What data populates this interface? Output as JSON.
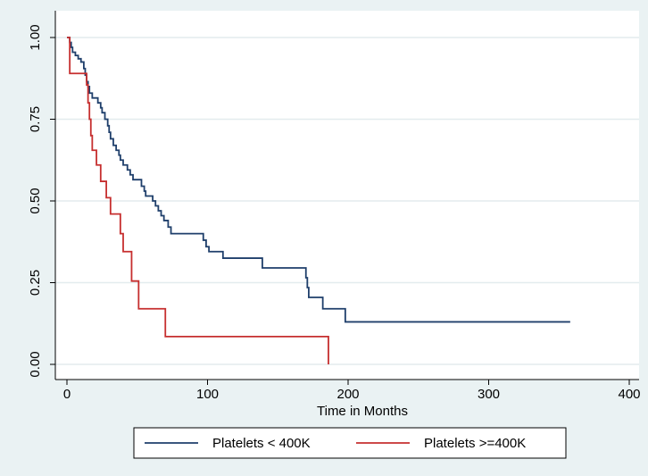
{
  "chart_data": {
    "type": "line",
    "title": "",
    "xlabel": "Time in Months",
    "ylabel": "",
    "xlim": [
      0,
      400
    ],
    "ylim": [
      0,
      1
    ],
    "x_ticks": [
      "0",
      "100",
      "200",
      "300",
      "400"
    ],
    "y_ticks": [
      "0.00",
      "0.25",
      "0.50",
      "0.75",
      "1.00"
    ],
    "grid": "horizontal",
    "legend_position": "bottom",
    "series": [
      {
        "name": "Platelets < 400K",
        "color": "#1f3f6b",
        "step": true,
        "points": [
          [
            0,
            1.0
          ],
          [
            2,
            0.985
          ],
          [
            3,
            0.97
          ],
          [
            4,
            0.955
          ],
          [
            6,
            0.945
          ],
          [
            8,
            0.935
          ],
          [
            10,
            0.925
          ],
          [
            12,
            0.905
          ],
          [
            13,
            0.885
          ],
          [
            14,
            0.865
          ],
          [
            15,
            0.85
          ],
          [
            16,
            0.83
          ],
          [
            18,
            0.815
          ],
          [
            22,
            0.8
          ],
          [
            24,
            0.785
          ],
          [
            25,
            0.77
          ],
          [
            27,
            0.75
          ],
          [
            29,
            0.73
          ],
          [
            30,
            0.71
          ],
          [
            31,
            0.69
          ],
          [
            33,
            0.67
          ],
          [
            35,
            0.655
          ],
          [
            37,
            0.64
          ],
          [
            38,
            0.625
          ],
          [
            40,
            0.61
          ],
          [
            43,
            0.595
          ],
          [
            45,
            0.58
          ],
          [
            47,
            0.565
          ],
          [
            53,
            0.545
          ],
          [
            55,
            0.53
          ],
          [
            56,
            0.515
          ],
          [
            61,
            0.5
          ],
          [
            63,
            0.485
          ],
          [
            65,
            0.47
          ],
          [
            67,
            0.455
          ],
          [
            69,
            0.44
          ],
          [
            72,
            0.42
          ],
          [
            74,
            0.4
          ],
          [
            97,
            0.38
          ],
          [
            99,
            0.36
          ],
          [
            101,
            0.345
          ],
          [
            111,
            0.325
          ],
          [
            139,
            0.295
          ],
          [
            170,
            0.265
          ],
          [
            171,
            0.235
          ],
          [
            172,
            0.205
          ],
          [
            182,
            0.17
          ],
          [
            198,
            0.13
          ],
          [
            358,
            0.13
          ]
        ]
      },
      {
        "name": "Platelets >=400K",
        "color": "#c62f2f",
        "step": true,
        "points": [
          [
            0,
            1.0
          ],
          [
            2,
            0.89
          ],
          [
            14,
            0.855
          ],
          [
            15,
            0.8
          ],
          [
            16,
            0.75
          ],
          [
            17,
            0.7
          ],
          [
            18,
            0.655
          ],
          [
            21,
            0.61
          ],
          [
            24,
            0.56
          ],
          [
            28,
            0.51
          ],
          [
            31,
            0.46
          ],
          [
            38,
            0.4
          ],
          [
            40,
            0.345
          ],
          [
            46,
            0.255
          ],
          [
            51,
            0.17
          ],
          [
            70,
            0.085
          ],
          [
            186,
            0.085
          ],
          [
            186,
            0.0
          ]
        ]
      }
    ]
  }
}
